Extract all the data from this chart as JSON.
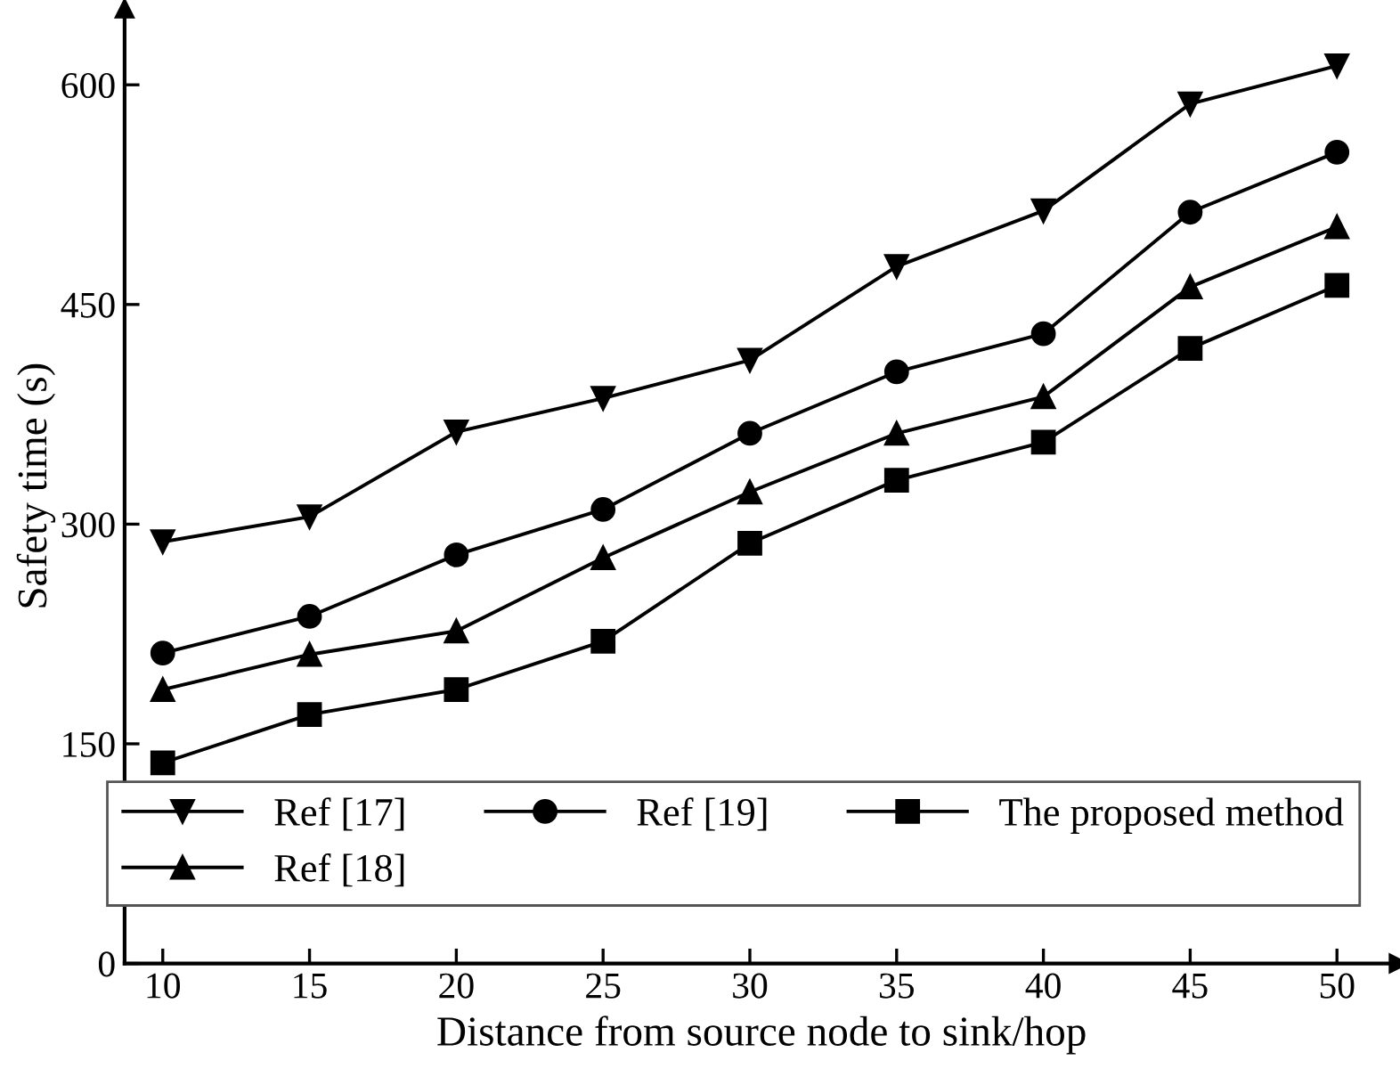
{
  "chart_data": {
    "type": "line",
    "xlabel": "Distance from source node to sink/hop",
    "ylabel": "Safety time (s)",
    "x": [
      10,
      15,
      20,
      25,
      30,
      35,
      40,
      45,
      50
    ],
    "xlim": [
      8.7,
      52.1
    ],
    "xticks": [
      10,
      15,
      20,
      25,
      30,
      35,
      40,
      45,
      50
    ],
    "ylim": [
      0,
      652
    ],
    "yticks": [
      0,
      150,
      300,
      450,
      600
    ],
    "grid": false,
    "legend": "bottom right",
    "line_style": "solid",
    "series": [
      {
        "name": "Ref [17]",
        "color": "#000000",
        "marker": "triangle_down",
        "values": [
          288,
          305,
          363,
          386,
          412,
          476,
          514,
          587,
          613
        ]
      },
      {
        "name": "Ref [18]",
        "color": "#000000",
        "marker": "triangle",
        "values": [
          187,
          211,
          227,
          277,
          322,
          362,
          387,
          462,
          503
        ]
      },
      {
        "name": "Ref [19]",
        "color": "#000000",
        "marker": "circle",
        "values": [
          212,
          237,
          279,
          310,
          362,
          404,
          430,
          513,
          554
        ]
      },
      {
        "name": "The proposed method",
        "color": "#000000",
        "marker": "square",
        "values": [
          137,
          170,
          187,
          220,
          287,
          330,
          356,
          420,
          463
        ]
      }
    ]
  }
}
